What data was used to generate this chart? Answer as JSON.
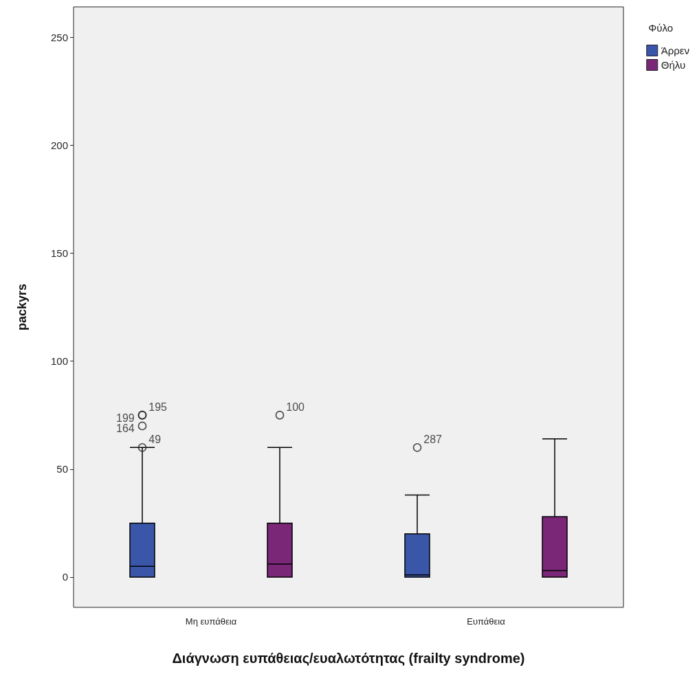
{
  "chart_data": {
    "type": "box",
    "xlabel": "Διάγνωση ευπάθειας/ευαλωτότητας (frailty syndrome)",
    "ylabel": "packyrs",
    "legend_title": "Φύλο",
    "legend": "top right",
    "grid": false,
    "categories": [
      "Μη ευπάθεια",
      "Ευπάθεια"
    ],
    "ylim": [
      -14,
      264
    ],
    "yticks": [
      0,
      50,
      100,
      150,
      200,
      250
    ],
    "series": [
      {
        "name": "Άρρεν",
        "color": "#3a56a8",
        "boxes": [
          {
            "low": 0,
            "q1": 0,
            "median": 5,
            "q3": 25,
            "high": 60,
            "outliers": [
              75,
              75,
              70,
              60
            ]
          },
          {
            "low": 0,
            "q1": 0,
            "median": 1,
            "q3": 20,
            "high": 38,
            "outliers": [
              60
            ]
          }
        ]
      },
      {
        "name": "Θήλυ",
        "color": "#7b2778",
        "boxes": [
          {
            "low": 0,
            "q1": 0,
            "median": 6,
            "q3": 25,
            "high": 60,
            "outliers": [
              75
            ]
          },
          {
            "low": 0,
            "q1": 0,
            "median": 3,
            "q3": 28,
            "high": 64
          }
        ]
      }
    ],
    "annotations": [
      "199",
      "195",
      "164",
      "49",
      "287",
      "100"
    ]
  }
}
